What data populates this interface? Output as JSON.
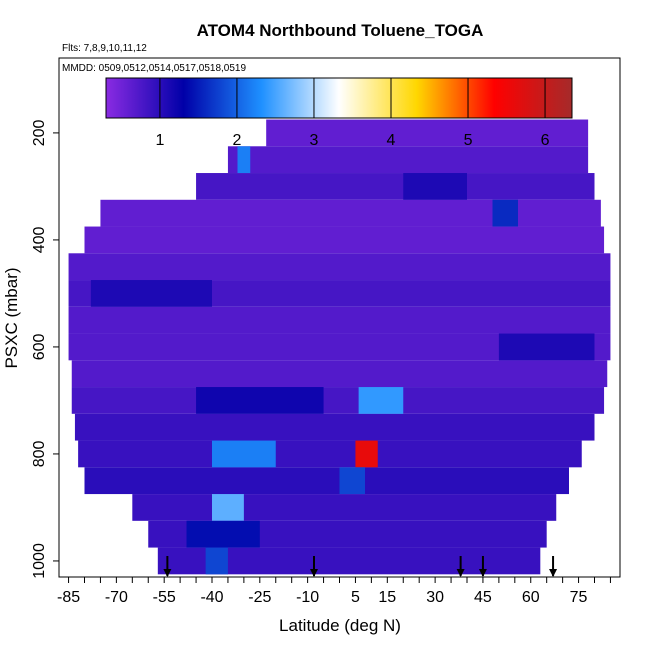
{
  "chart_data": {
    "type": "heatmap",
    "title": "ATOM4 Northbound Toluene_TOGA",
    "flights_label": "Flts: 7,8,9,10,11,12",
    "dates_label": "MMDD: 0509,0512,0514,0517,0518,0519",
    "xlabel": "Latitude (deg N)",
    "ylabel": "PSXC (mbar)",
    "xlim": [
      -88,
      88
    ],
    "ylim": [
      1030,
      60
    ],
    "x_ticks": [
      -85,
      -70,
      -55,
      -40,
      -25,
      -10,
      5,
      15,
      30,
      45,
      60,
      75
    ],
    "y_ticks": [
      200,
      400,
      600,
      800,
      1000
    ],
    "colorbar": {
      "range": [
        0.3,
        6.35
      ],
      "ticks": [
        1,
        2,
        3,
        4,
        5,
        6
      ],
      "colors": [
        "#8a2be2",
        "#0000a8",
        "#1e90ff",
        "#ffffff",
        "#ffd700",
        "#ff0000",
        "#a52a2a"
      ]
    },
    "layers": [
      {
        "p": 200,
        "lat": [
          -23,
          78
        ],
        "value": 0.6
      },
      {
        "p": 250,
        "lat": [
          -35,
          78
        ],
        "value": 0.7
      },
      {
        "p": 300,
        "lat": [
          -45,
          80
        ],
        "value": 0.8
      },
      {
        "p": 350,
        "lat": [
          -75,
          82
        ],
        "value": 0.6
      },
      {
        "p": 400,
        "lat": [
          -80,
          83
        ],
        "value": 0.6
      },
      {
        "p": 450,
        "lat": [
          -85,
          85
        ],
        "value": 0.7
      },
      {
        "p": 500,
        "lat": [
          -85,
          85
        ],
        "value": 0.8
      },
      {
        "p": 550,
        "lat": [
          -85,
          85
        ],
        "value": 0.7
      },
      {
        "p": 600,
        "lat": [
          -85,
          85
        ],
        "value": 0.7
      },
      {
        "p": 650,
        "lat": [
          -84,
          84
        ],
        "value": 0.7
      },
      {
        "p": 700,
        "lat": [
          -84,
          83
        ],
        "value": 0.8
      },
      {
        "p": 750,
        "lat": [
          -83,
          80
        ],
        "value": 0.9
      },
      {
        "p": 800,
        "lat": [
          -82,
          76
        ],
        "value": 0.9
      },
      {
        "p": 850,
        "lat": [
          -80,
          72
        ],
        "value": 1.0
      },
      {
        "p": 900,
        "lat": [
          -65,
          68
        ],
        "value": 0.9
      },
      {
        "p": 950,
        "lat": [
          -60,
          65
        ],
        "value": 0.9
      },
      {
        "p": 1000,
        "lat": [
          -57,
          63
        ],
        "value": 0.9
      }
    ],
    "hotspots": [
      {
        "p": 250,
        "lat": [
          -32,
          -28
        ],
        "value": 2.2
      },
      {
        "p": 300,
        "lat": [
          20,
          40
        ],
        "value": 1.1
      },
      {
        "p": 350,
        "lat": [
          48,
          56
        ],
        "value": 1.6
      },
      {
        "p": 500,
        "lat": [
          -78,
          -40
        ],
        "value": 1.1
      },
      {
        "p": 600,
        "lat": [
          50,
          80
        ],
        "value": 1.1
      },
      {
        "p": 700,
        "lat": [
          -45,
          -5
        ],
        "value": 1.2
      },
      {
        "p": 700,
        "lat": [
          6,
          20
        ],
        "value": 2.4
      },
      {
        "p": 800,
        "lat": [
          -40,
          -20
        ],
        "value": 2.2
      },
      {
        "p": 800,
        "lat": [
          5,
          12
        ],
        "value": 5.6
      },
      {
        "p": 850,
        "lat": [
          0,
          8
        ],
        "value": 1.8
      },
      {
        "p": 900,
        "lat": [
          -40,
          -30
        ],
        "value": 2.6
      },
      {
        "p": 950,
        "lat": [
          -48,
          -25
        ],
        "value": 1.4
      },
      {
        "p": 1000,
        "lat": [
          -42,
          -35
        ],
        "value": 1.8
      }
    ],
    "arrows_lat": [
      -54,
      -8,
      38,
      45,
      67
    ]
  }
}
